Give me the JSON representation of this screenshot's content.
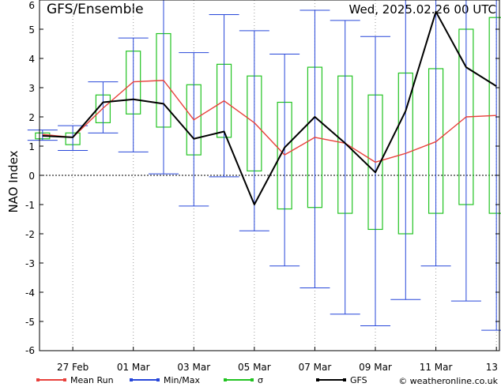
{
  "chart_data": {
    "type": "line",
    "title": "GFS/Ensemble",
    "date_label": "Wed, 2025.02.26  00 UTC",
    "ylabel": "NAO Index",
    "ylim": [
      -6,
      6
    ],
    "yticks": [
      -6,
      -5,
      -4,
      -3,
      -2,
      -1,
      0,
      1,
      2,
      3,
      4,
      5,
      6
    ],
    "x_ticks": [
      {
        "x": 1,
        "label": "27 Feb"
      },
      {
        "x": 3,
        "label": "01 Mar"
      },
      {
        "x": 5,
        "label": "03 Mar"
      },
      {
        "x": 7,
        "label": "05 Mar"
      },
      {
        "x": 9,
        "label": "07 Mar"
      },
      {
        "x": 11,
        "label": "09 Mar"
      },
      {
        "x": 13,
        "label": "11 Mar"
      },
      {
        "x": 15,
        "label": "13"
      }
    ],
    "xlim": [
      -0.1,
      15.1
    ],
    "x": [
      0,
      1,
      2,
      3,
      4,
      5,
      6,
      7,
      8,
      9,
      10,
      11,
      12,
      13,
      14,
      15
    ],
    "series": [
      {
        "name": "Mean Run",
        "color": "#e8413c",
        "values": [
          1.4,
          1.3,
          2.3,
          3.2,
          3.25,
          1.9,
          2.55,
          1.8,
          0.7,
          1.3,
          1.1,
          0.45,
          0.75,
          1.15,
          2.0,
          2.05
        ]
      },
      {
        "name": "GFS",
        "color": "#000000",
        "values": [
          1.35,
          1.3,
          2.5,
          2.6,
          2.45,
          1.25,
          1.5,
          -1.0,
          0.95,
          2.0,
          1.1,
          0.1,
          2.2,
          5.6,
          3.7,
          3.05
        ]
      }
    ],
    "minmax": {
      "name": "Min/Max",
      "color": "#2747d9",
      "min": [
        1.2,
        0.85,
        1.45,
        0.8,
        0.05,
        -1.05,
        -0.05,
        -1.9,
        -3.1,
        -3.85,
        -4.75,
        -5.15,
        -4.25,
        -3.1,
        -4.3,
        -5.3
      ],
      "max": [
        1.55,
        1.7,
        3.2,
        4.7,
        6.3,
        4.2,
        5.5,
        4.95,
        4.15,
        5.65,
        5.3,
        4.75,
        6.3,
        6.3,
        6.3,
        6.3
      ]
    },
    "sigma": {
      "name": "σ",
      "color": "#22c322",
      "low": [
        1.25,
        1.05,
        1.8,
        2.1,
        1.65,
        0.7,
        1.3,
        0.15,
        -1.15,
        -1.1,
        -1.3,
        -1.85,
        -2.0,
        -1.3,
        -1.0,
        -1.3
      ],
      "high": [
        1.45,
        1.45,
        2.75,
        4.25,
        4.85,
        3.1,
        3.8,
        3.4,
        2.5,
        3.7,
        3.4,
        2.75,
        3.5,
        3.65,
        5.0,
        5.4
      ]
    },
    "zero_line": true,
    "legend": [
      {
        "name": "Mean Run",
        "color": "#e8413c"
      },
      {
        "name": "Min/Max",
        "color": "#2747d9"
      },
      {
        "name": "σ",
        "color": "#22c322"
      },
      {
        "name": "GFS",
        "color": "#000000"
      }
    ],
    "credit": "© weatheronline.co.uk"
  }
}
